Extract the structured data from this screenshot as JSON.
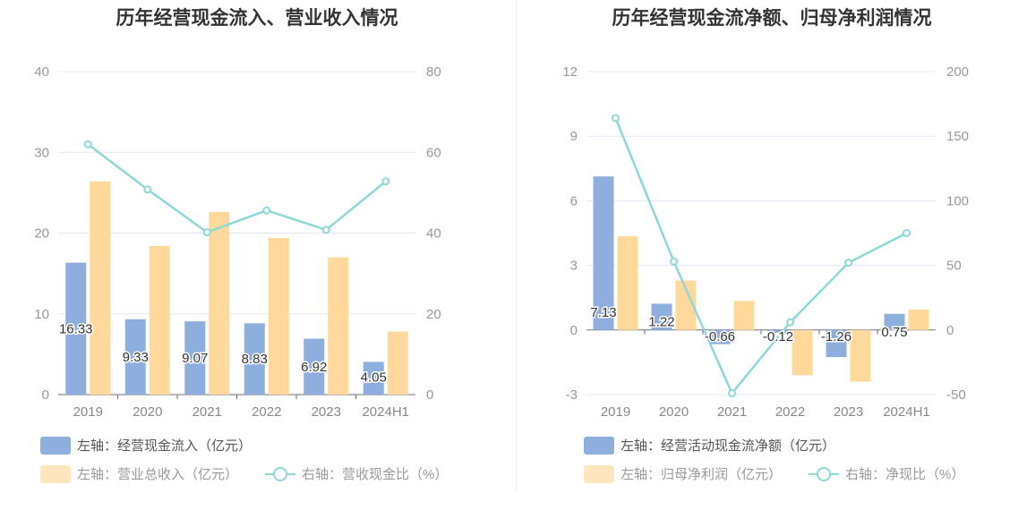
{
  "chart_data": [
    {
      "type": "bar",
      "title": "历年经营现金流入、营业收入情况",
      "categories": [
        "2019",
        "2020",
        "2021",
        "2022",
        "2023",
        "2024H1"
      ],
      "left_axis": {
        "ticks": [
          "0",
          "10",
          "20",
          "30",
          "40"
        ],
        "ylim": [
          0,
          40
        ]
      },
      "right_axis": {
        "ticks": [
          "0",
          "20",
          "40",
          "60",
          "80"
        ],
        "ylim": [
          0,
          80
        ]
      },
      "series": [
        {
          "name": "左轴：经营现金流入（亿元）",
          "kind": "bar",
          "axis": "left",
          "color": "#8eaedd",
          "values": [
            16.33,
            9.33,
            9.07,
            8.83,
            6.92,
            4.05
          ],
          "labels": [
            "16.33",
            "9.33",
            "9.07",
            "8.83",
            "6.92",
            "4.05"
          ]
        },
        {
          "name": "左轴：营业总收入（亿元）",
          "kind": "bar",
          "axis": "left",
          "color": "#ffd99b",
          "values": [
            26.4,
            18.4,
            22.6,
            19.4,
            17.0,
            7.8
          ]
        },
        {
          "name": "右轴：营收现金比（%）",
          "kind": "line",
          "axis": "right",
          "color": "#8ed8d8",
          "values": [
            62.0,
            50.8,
            40.2,
            45.6,
            40.8,
            52.8
          ]
        }
      ],
      "legend_position": "bottom-left"
    },
    {
      "type": "bar",
      "title": "历年经营现金流净额、归母净利润情况",
      "categories": [
        "2019",
        "2020",
        "2021",
        "2022",
        "2023",
        "2024H1"
      ],
      "left_axis": {
        "ticks": [
          "-3",
          "0",
          "3",
          "6",
          "9",
          "12"
        ],
        "ylim": [
          -3,
          12
        ]
      },
      "right_axis": {
        "ticks": [
          "-50",
          "0",
          "50",
          "100",
          "150",
          "200"
        ],
        "ylim": [
          -50,
          200
        ]
      },
      "series": [
        {
          "name": "左轴：经营活动现金流净额（亿元）",
          "kind": "bar",
          "axis": "left",
          "color": "#8eaedd",
          "values": [
            7.13,
            1.22,
            -0.66,
            -0.12,
            -1.26,
            0.75
          ],
          "labels": [
            "7.13",
            "1.22",
            "-0.66",
            "-0.12",
            "-1.26",
            "0.75"
          ]
        },
        {
          "name": "左轴：归母净利润（亿元）",
          "kind": "bar",
          "axis": "left",
          "color": "#ffd99b",
          "values": [
            4.35,
            2.3,
            1.35,
            -2.1,
            -2.4,
            0.95
          ]
        },
        {
          "name": "右轴：净现比（%）",
          "kind": "line",
          "axis": "right",
          "color": "#8ed8d8",
          "values": [
            164,
            53,
            -49,
            6,
            52,
            75
          ]
        }
      ],
      "legend_position": "bottom-left"
    }
  ]
}
